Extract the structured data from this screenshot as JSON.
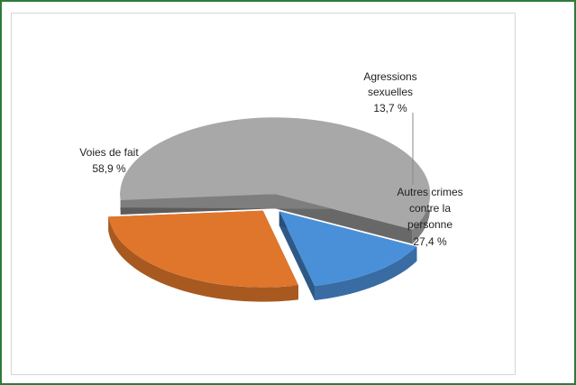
{
  "chart_data": {
    "type": "pie",
    "title": "",
    "categories": [
      "Voies de fait",
      "Agressions sexuelles",
      "Autres crimes contre la personne"
    ],
    "values": [
      58.9,
      13.7,
      27.4
    ],
    "value_labels": [
      "58,9 %",
      "13,7 %",
      "27,4 %"
    ],
    "colors": [
      "#a8a8a8",
      "#4a90d9",
      "#e0762b"
    ],
    "legend": "none",
    "labels": {
      "voies": {
        "l1": "Voies de fait",
        "l2": "58,9 %"
      },
      "agressions": {
        "l1": "Agressions",
        "l2": "sexuelles",
        "l3": "13,7 %"
      },
      "autres": {
        "l1": "Autres crimes",
        "l2": "contre la",
        "l3": "personne",
        "l4": "27,4 %"
      }
    }
  }
}
